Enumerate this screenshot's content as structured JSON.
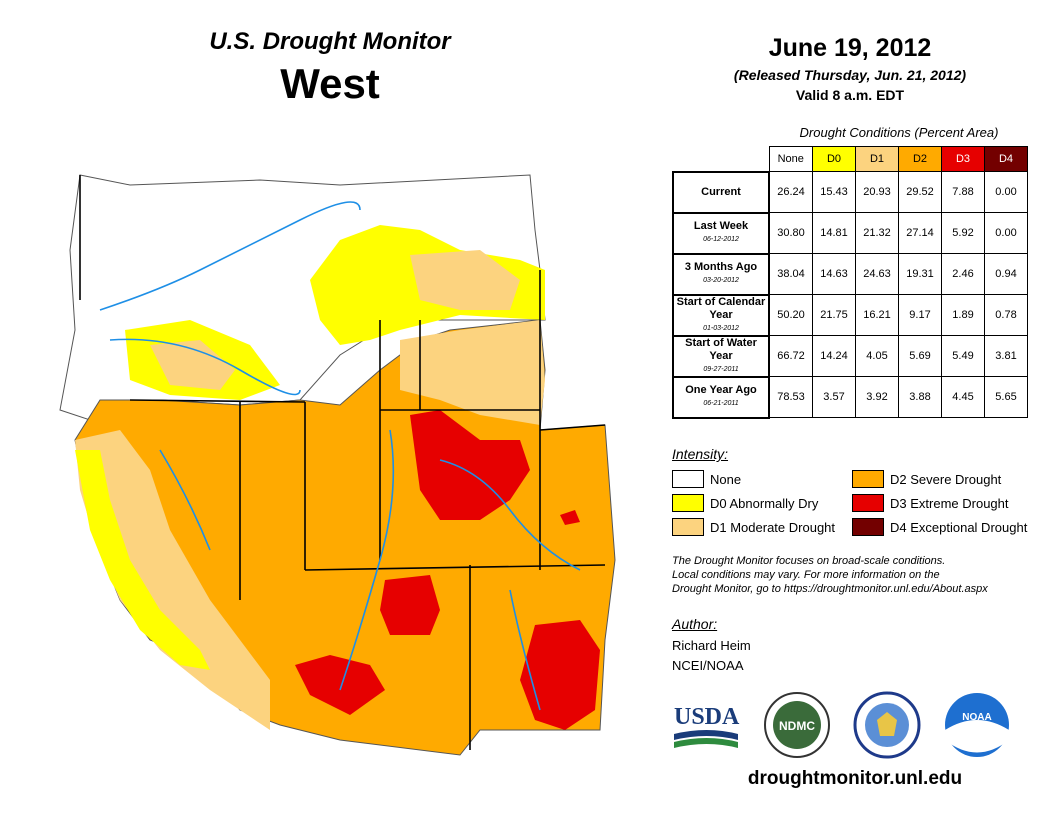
{
  "header": {
    "title": "U.S. Drought Monitor",
    "region": "West",
    "date": "June 19, 2012",
    "released": "(Released Thursday, Jun. 21, 2012)",
    "valid": "Valid 8 a.m. EDT"
  },
  "table": {
    "caption": "Drought Conditions (Percent Area)",
    "columns": [
      {
        "label": "None",
        "color": "#ffffff",
        "text_color": "#000000"
      },
      {
        "label": "D0",
        "color": "#ffff00",
        "text_color": "#000000"
      },
      {
        "label": "D1",
        "color": "#fcd37f",
        "text_color": "#000000"
      },
      {
        "label": "D2",
        "color": "#ffaa00",
        "text_color": "#000000"
      },
      {
        "label": "D3",
        "color": "#e60000",
        "text_color": "#ffffff"
      },
      {
        "label": "D4",
        "color": "#730000",
        "text_color": "#ffffff"
      }
    ],
    "rows": [
      {
        "label": "Current",
        "sublabel": "",
        "values": [
          "26.24",
          "15.43",
          "20.93",
          "29.52",
          "7.88",
          "0.00"
        ]
      },
      {
        "label": "Last Week",
        "sublabel": "06-12-2012",
        "values": [
          "30.80",
          "14.81",
          "21.32",
          "27.14",
          "5.92",
          "0.00"
        ]
      },
      {
        "label": "3 Months Ago",
        "sublabel": "03-20-2012",
        "values": [
          "38.04",
          "14.63",
          "24.63",
          "19.31",
          "2.46",
          "0.94"
        ]
      },
      {
        "label": "Start of Calendar Year",
        "sublabel": "01-03-2012",
        "values": [
          "50.20",
          "21.75",
          "16.21",
          "9.17",
          "1.89",
          "0.78"
        ]
      },
      {
        "label": "Start of Water Year",
        "sublabel": "09-27-2011",
        "values": [
          "66.72",
          "14.24",
          "4.05",
          "5.69",
          "5.49",
          "3.81"
        ]
      },
      {
        "label": "One Year Ago",
        "sublabel": "06-21-2011",
        "values": [
          "78.53",
          "3.57",
          "3.92",
          "3.88",
          "4.45",
          "5.65"
        ]
      }
    ]
  },
  "legend": {
    "title": "Intensity:",
    "items": [
      {
        "label": "None",
        "color": "#ffffff"
      },
      {
        "label": "D0 Abnormally Dry",
        "color": "#ffff00"
      },
      {
        "label": "D1 Moderate Drought",
        "color": "#fcd37f"
      },
      {
        "label": "D2 Severe Drought",
        "color": "#ffaa00"
      },
      {
        "label": "D3 Extreme Drought",
        "color": "#e60000"
      },
      {
        "label": "D4 Exceptional Drought",
        "color": "#730000"
      }
    ]
  },
  "note": {
    "line1": "The Drought Monitor focuses on broad-scale conditions.",
    "line2": "Local conditions may vary. For more information on the",
    "line3": "Drought Monitor, go to https://droughtmonitor.unl.edu/About.aspx"
  },
  "author": {
    "title": "Author:",
    "name": "Richard Heim",
    "org": "NCEI/NOAA"
  },
  "logos": {
    "usda": "USDA",
    "ndmc": "NDMC",
    "noaa": "NOAA"
  },
  "website": "droughtmonitor.unl.edu"
}
